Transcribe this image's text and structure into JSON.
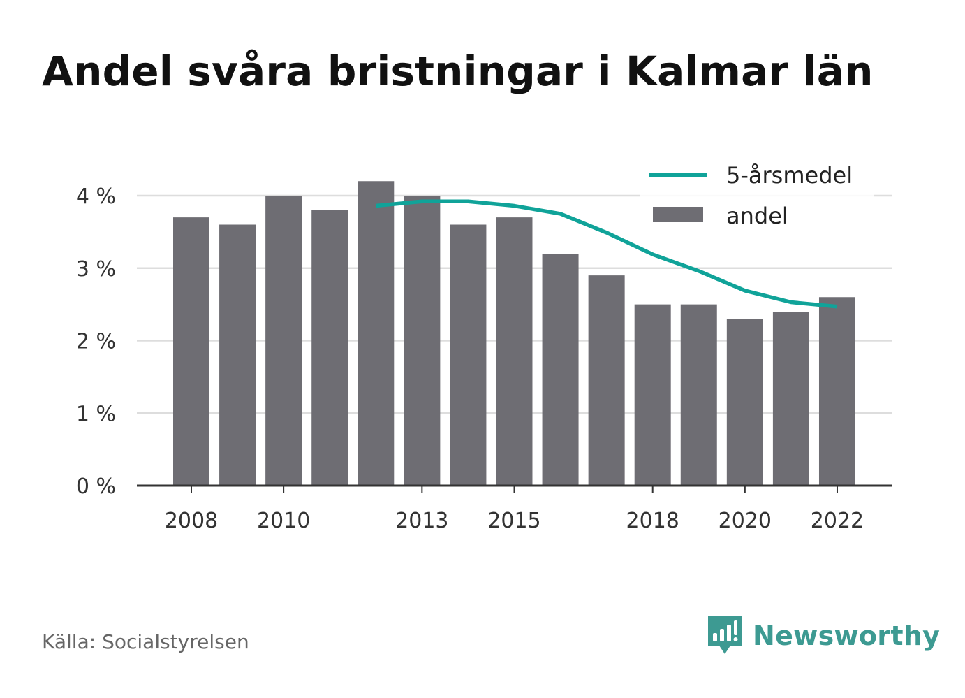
{
  "chart_data": {
    "type": "bar",
    "title": "Andel svåra bristningar i Kalmar län",
    "categories": [
      "2008",
      "2009",
      "2010",
      "2011",
      "2012",
      "2013",
      "2014",
      "2015",
      "2016",
      "2017",
      "2018",
      "2019",
      "2020",
      "2021",
      "2022"
    ],
    "x_tick_labels": [
      "2008",
      "2010",
      "2013",
      "2015",
      "2018",
      "2020",
      "2022"
    ],
    "series": [
      {
        "name": "andel",
        "type": "bar",
        "color": "#6e6d73",
        "values": [
          3.7,
          3.6,
          4.0,
          3.8,
          4.2,
          4.0,
          3.6,
          3.7,
          3.2,
          2.9,
          2.5,
          2.5,
          2.3,
          2.4,
          2.6
        ]
      },
      {
        "name": "5-årsmedel",
        "type": "line",
        "color": "#10a399",
        "values": [
          null,
          null,
          null,
          null,
          3.86,
          3.92,
          3.92,
          3.86,
          3.75,
          3.49,
          3.19,
          2.96,
          2.69,
          2.53,
          2.47
        ]
      }
    ],
    "y_ticks": [
      0,
      1,
      2,
      3,
      4
    ],
    "y_tick_labels": [
      "0 %",
      "1 %",
      "2 %",
      "3 %",
      "4 %"
    ],
    "ylim": [
      0,
      4.3
    ],
    "xlabel": "",
    "ylabel": "",
    "grid": true,
    "legend_position": "top-right"
  },
  "footer": {
    "source": "Källa: Socialstyrelsen",
    "brand": "Newsworthy",
    "brand_icon": "bar-chart-speech-bubble-icon",
    "brand_color": "#3d9a92"
  }
}
